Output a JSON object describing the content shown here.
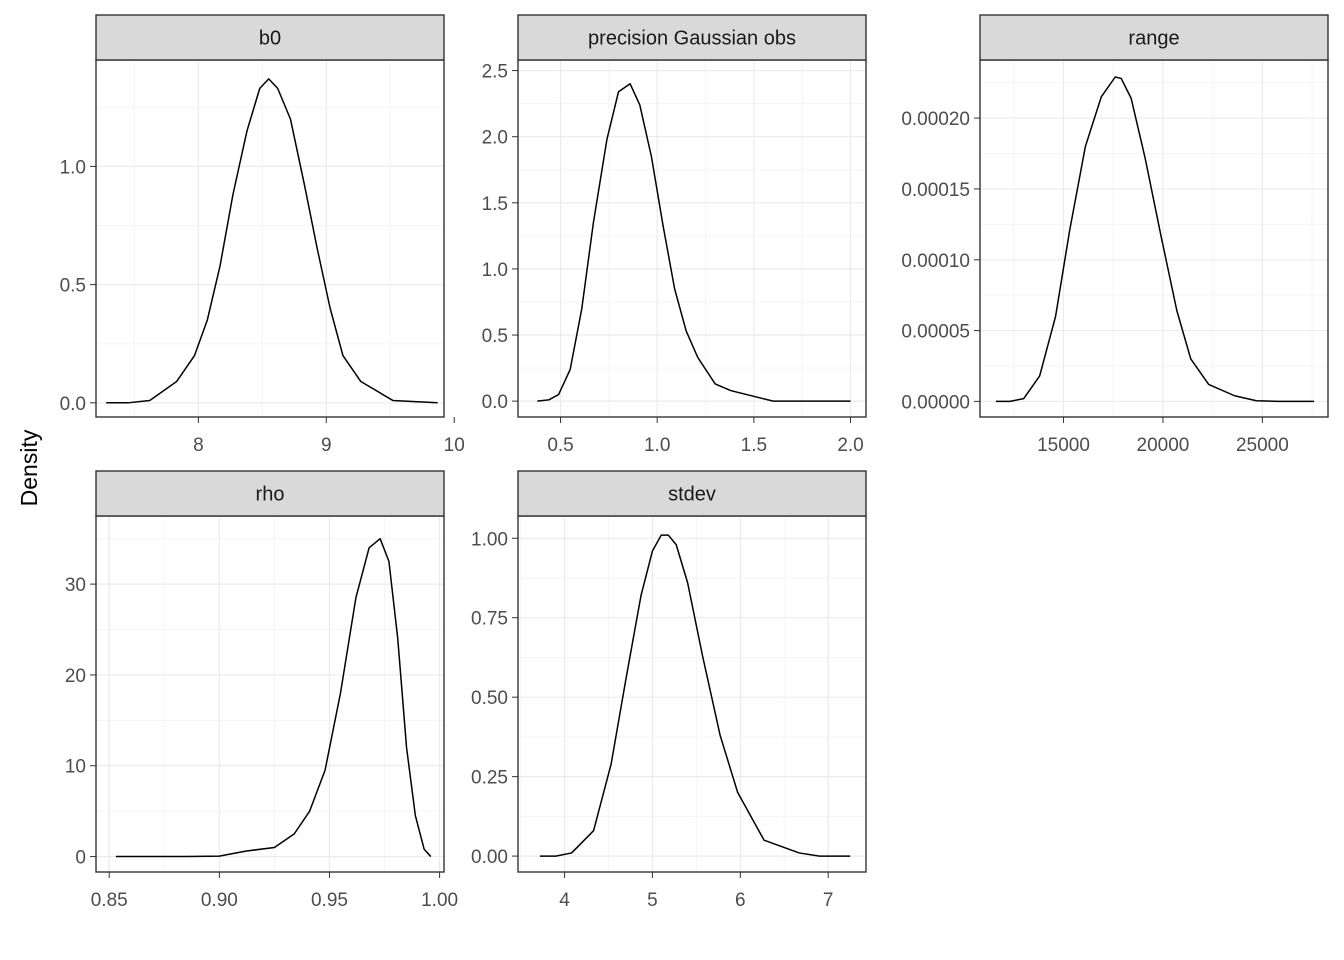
{
  "ylabel": "Density",
  "colors": {
    "strip_bg": "#d9d9d9",
    "border": "#333333",
    "grid_major": "#ebebeb",
    "grid_minor": "#f5f5f5",
    "line": "#000000"
  },
  "chart_data": [
    {
      "type": "line",
      "title": "b0",
      "xlim": [
        7.2,
        9.92
      ],
      "ylim": [
        -0.06,
        1.45
      ],
      "xticks": [
        8,
        9,
        10
      ],
      "xtick_labels": [
        "8",
        "9",
        "10"
      ],
      "yticks": [
        0,
        0.5,
        1
      ],
      "ytick_labels": [
        "0.0",
        "0.5",
        "1.0"
      ],
      "x": [
        7.28,
        7.45,
        7.62,
        7.83,
        7.97,
        8.07,
        8.17,
        8.27,
        8.38,
        8.48,
        8.55,
        8.62,
        8.72,
        8.83,
        8.93,
        9.03,
        9.13,
        9.27,
        9.52,
        9.87
      ],
      "y": [
        0.0,
        0.0,
        0.01,
        0.09,
        0.2,
        0.35,
        0.58,
        0.88,
        1.15,
        1.33,
        1.37,
        1.33,
        1.2,
        0.92,
        0.65,
        0.4,
        0.2,
        0.09,
        0.01,
        0.0
      ]
    },
    {
      "type": "line",
      "title": "precision Gaussian obs",
      "xlim": [
        0.28,
        2.08
      ],
      "ylim": [
        -0.12,
        2.58
      ],
      "xticks": [
        0.5,
        1.0,
        1.5,
        2.0
      ],
      "xtick_labels": [
        "0.5",
        "1.0",
        "1.5",
        "2.0"
      ],
      "yticks": [
        0,
        0.5,
        1,
        1.5,
        2,
        2.5
      ],
      "ytick_labels": [
        "0.0",
        "0.5",
        "1.0",
        "1.5",
        "2.0",
        "2.5"
      ],
      "x": [
        0.38,
        0.44,
        0.49,
        0.55,
        0.61,
        0.67,
        0.74,
        0.8,
        0.86,
        0.91,
        0.97,
        1.03,
        1.09,
        1.15,
        1.21,
        1.3,
        1.38,
        1.6,
        2.0
      ],
      "y": [
        0.0,
        0.01,
        0.05,
        0.24,
        0.7,
        1.35,
        1.98,
        2.34,
        2.4,
        2.24,
        1.85,
        1.33,
        0.85,
        0.53,
        0.33,
        0.13,
        0.08,
        0.0,
        0.0
      ]
    },
    {
      "type": "line",
      "title": "range",
      "xlim": [
        10800,
        28300
      ],
      "ylim": [
        -1.1e-05,
        0.000241
      ],
      "xticks": [
        15000,
        20000,
        25000
      ],
      "xtick_labels": [
        "15000",
        "20000",
        "25000"
      ],
      "yticks": [
        0,
        5e-05,
        0.0001,
        0.00015,
        0.0002
      ],
      "ytick_labels": [
        "0.00000",
        "0.00005",
        "0.00010",
        "0.00015",
        "0.00020"
      ],
      "x": [
        11600,
        12300,
        13000,
        13800,
        14600,
        15300,
        16100,
        16900,
        17600,
        17900,
        18400,
        19100,
        19900,
        20700,
        21400,
        22300,
        23600,
        24700,
        25800,
        27600
      ],
      "y": [
        0.0,
        0.0,
        2e-06,
        1.8e-05,
        6e-05,
        0.00012,
        0.00018,
        0.000215,
        0.000229,
        0.000228,
        0.000214,
        0.000172,
        0.000117,
        6.4e-05,
        3e-05,
        1.2e-05,
        4e-06,
        5e-07,
        0.0,
        0.0
      ]
    },
    {
      "type": "line",
      "title": "rho",
      "xlim": [
        0.844,
        1.002
      ],
      "ylim": [
        -1.7,
        37.5
      ],
      "xticks": [
        0.85,
        0.9,
        0.95,
        1.0
      ],
      "xtick_labels": [
        "0.85",
        "0.90",
        "0.95",
        "1.00"
      ],
      "yticks": [
        0,
        10,
        20,
        30
      ],
      "ytick_labels": [
        "0",
        "10",
        "20",
        "30"
      ],
      "x": [
        0.853,
        0.87,
        0.885,
        0.9,
        0.912,
        0.925,
        0.934,
        0.941,
        0.948,
        0.955,
        0.962,
        0.968,
        0.973,
        0.977,
        0.981,
        0.985,
        0.989,
        0.993,
        0.996
      ],
      "y": [
        0.0,
        0.0,
        0.0,
        0.05,
        0.6,
        1.0,
        2.5,
        5.0,
        9.5,
        18.0,
        28.5,
        34.0,
        35.0,
        32.5,
        24.0,
        12.0,
        4.5,
        0.8,
        0.0
      ]
    },
    {
      "type": "line",
      "title": "stdev",
      "xlim": [
        3.47,
        7.43
      ],
      "ylim": [
        -0.05,
        1.07
      ],
      "xticks": [
        4,
        5,
        6,
        7
      ],
      "xtick_labels": [
        "4",
        "5",
        "6",
        "7"
      ],
      "yticks": [
        0,
        0.25,
        0.5,
        0.75,
        1
      ],
      "ytick_labels": [
        "0.00",
        "0.25",
        "0.50",
        "0.75",
        "1.00"
      ],
      "x": [
        3.72,
        3.9,
        4.08,
        4.33,
        4.53,
        4.7,
        4.87,
        5.0,
        5.1,
        5.18,
        5.27,
        5.4,
        5.57,
        5.77,
        5.97,
        6.27,
        6.67,
        6.9,
        7.25
      ],
      "y": [
        0.0,
        0.0,
        0.01,
        0.08,
        0.29,
        0.56,
        0.82,
        0.96,
        1.01,
        1.01,
        0.98,
        0.86,
        0.63,
        0.38,
        0.2,
        0.05,
        0.01,
        0.0,
        0.0
      ]
    }
  ]
}
